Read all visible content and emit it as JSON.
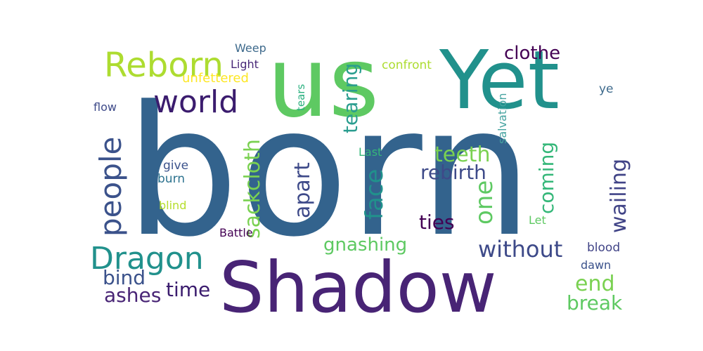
{
  "cloud": {
    "background": "#ffffff",
    "words": [
      {
        "text": "born",
        "color": "#33638d"
      },
      {
        "text": "us",
        "color": "#5ec962"
      },
      {
        "text": "Yet",
        "color": "#21918c"
      },
      {
        "text": "Shadow",
        "color": "#482475"
      },
      {
        "text": "Reborn",
        "color": "#addc30"
      },
      {
        "text": "world",
        "color": "#3b1c6e"
      },
      {
        "text": "people",
        "color": "#3b528b"
      },
      {
        "text": "Dragon",
        "color": "#21918c"
      },
      {
        "text": "sackcloth",
        "color": "#7ad151"
      },
      {
        "text": "tearing",
        "color": "#2a9d8f"
      },
      {
        "text": "face",
        "color": "#21918c"
      },
      {
        "text": "apart",
        "color": "#3e4a89"
      },
      {
        "text": "teeth",
        "color": "#7ad151"
      },
      {
        "text": "rebirth",
        "color": "#3e4a89"
      },
      {
        "text": "one",
        "color": "#5ec962"
      },
      {
        "text": "coming",
        "color": "#35b779"
      },
      {
        "text": "wailing",
        "color": "#414487"
      },
      {
        "text": "clothe",
        "color": "#440154"
      },
      {
        "text": "confront",
        "color": "#addc30"
      },
      {
        "text": "salvation",
        "color": "#46a3a0"
      },
      {
        "text": "ye",
        "color": "#3e6a8c"
      },
      {
        "text": "Weep",
        "color": "#3e6a8c"
      },
      {
        "text": "Light",
        "color": "#482878"
      },
      {
        "text": "unfettered",
        "color": "#fde725"
      },
      {
        "text": "tears",
        "color": "#2ab07f"
      },
      {
        "text": "flow",
        "color": "#3e4a89"
      },
      {
        "text": "give",
        "color": "#3b528b"
      },
      {
        "text": "burn",
        "color": "#2c728e"
      },
      {
        "text": "blind",
        "color": "#b5de2b"
      },
      {
        "text": "Last",
        "color": "#35b779"
      },
      {
        "text": "Let",
        "color": "#5ec962"
      },
      {
        "text": "ties",
        "color": "#440154"
      },
      {
        "text": "gnashing",
        "color": "#5ec962"
      },
      {
        "text": "without",
        "color": "#3e4a89"
      },
      {
        "text": "blood",
        "color": "#414487"
      },
      {
        "text": "dawn",
        "color": "#3b528b"
      },
      {
        "text": "Battle",
        "color": "#440154"
      },
      {
        "text": "bind",
        "color": "#3b528b"
      },
      {
        "text": "ashes",
        "color": "#482475"
      },
      {
        "text": "time",
        "color": "#3b1c6e"
      },
      {
        "text": "end",
        "color": "#7ad151"
      },
      {
        "text": "break",
        "color": "#5ec962"
      }
    ]
  }
}
